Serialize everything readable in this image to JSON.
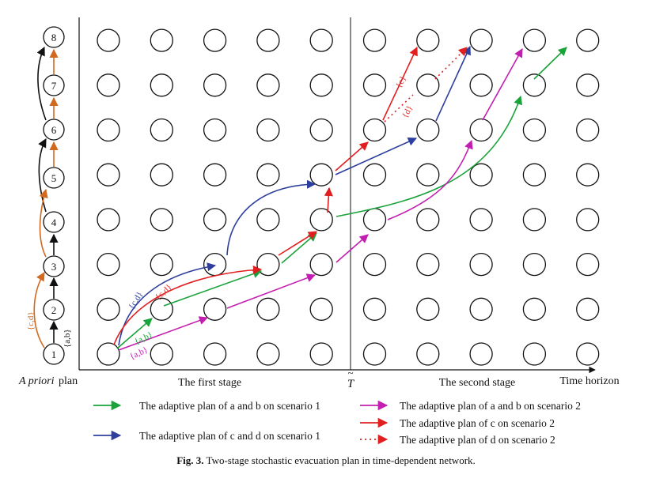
{
  "priori_nodes": [
    "1",
    "2",
    "3",
    "4",
    "5",
    "6",
    "7",
    "8"
  ],
  "labels": {
    "apriori_plan_italic": "A priori",
    "apriori_plan_rest": " plan",
    "first_stage": "The first stage",
    "t_tilde": "T",
    "second_stage": "The second stage",
    "time_horizon": "Time horizon"
  },
  "set_labels": {
    "ab_black": "{a,b}",
    "cd_orange": "{c,d}",
    "cd_blue": "{c,d}",
    "cd_red": "{c,d}",
    "ab_green": "{a,b}",
    "ab_magenta": "{a,b}",
    "c_red": "{c}",
    "d_red": "{d}"
  },
  "legend": [
    {
      "text": "The adaptive plan of a and b on scenario 1",
      "color": "#1aa33a",
      "style": "solid"
    },
    {
      "text": "The adaptive plan of c and d on scenario 1",
      "color": "#2e3f9e",
      "style": "solid"
    },
    {
      "text": "The adaptive plan of a and b on scenario 2",
      "color": "#c21fb0",
      "style": "solid"
    },
    {
      "text": "The adaptive plan of c on scenario 2",
      "color": "#e02020",
      "style": "solid"
    },
    {
      "text": "The adaptive plan of d on scenario 2",
      "color": "#e02020",
      "style": "dotted"
    }
  ],
  "colors": {
    "green": "#1aa33a",
    "blue": "#2e3f9e",
    "magenta": "#c21fb0",
    "red": "#e02020",
    "orange": "#d2691e",
    "black": "#111111"
  },
  "caption": {
    "prefix": "Fig. 3.",
    "text": " Two-stage stochastic evacuation plan in time-dependent network."
  }
}
